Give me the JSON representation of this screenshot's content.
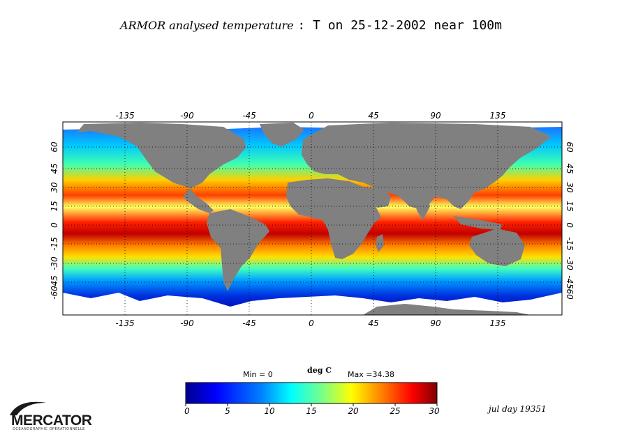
{
  "title": {
    "italic_part": "ARMOR analysed temperature",
    "roman_part": ": T on 25-12-2002 near 100m"
  },
  "map": {
    "lon_ticks": [
      "-135",
      "-90",
      "-45",
      "0",
      "45",
      "90",
      "135"
    ],
    "lat_ticks": [
      "60",
      "45",
      "30",
      "15",
      "0",
      "-15",
      "-30",
      "-45",
      "-60"
    ],
    "land_color": "#808080",
    "ice_color": "#ffffff"
  },
  "legend": {
    "min_label": "Min = 0",
    "unit": "deg C",
    "max_label": "Max =34.38",
    "ticks": [
      "0",
      "5",
      "10",
      "15",
      "20",
      "25",
      "30"
    ],
    "colors": [
      "#00008f",
      "#0000ff",
      "#0080ff",
      "#00ffff",
      "#80ff80",
      "#ffff00",
      "#ff8000",
      "#ff0000",
      "#800000"
    ]
  },
  "footer": {
    "jday": "jul day 19351",
    "logo_text": "MERCATOR",
    "logo_sub": "OCEANOGRAPHIC OPERATIONNELLE"
  }
}
